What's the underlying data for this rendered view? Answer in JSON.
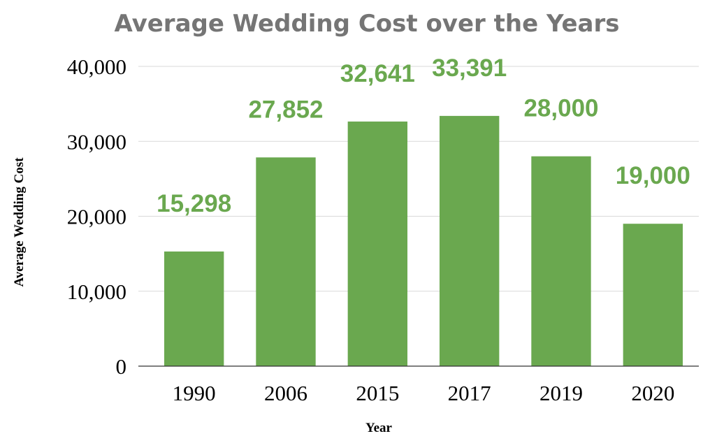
{
  "chart_data": {
    "type": "bar",
    "title": "Average Wedding Cost over the Years",
    "xlabel": "Year",
    "ylabel": "Average Wedding Cost",
    "categories": [
      "1990",
      "2006",
      "2015",
      "2017",
      "2019",
      "2020"
    ],
    "values": [
      15298,
      27852,
      32641,
      33391,
      28000,
      19000
    ],
    "data_labels": [
      "15,298",
      "27,852",
      "32,641",
      "33,391",
      "28,000",
      "19,000"
    ],
    "ylim": [
      0,
      40000
    ],
    "yticks": [
      0,
      10000,
      20000,
      30000,
      40000
    ],
    "ytick_labels": [
      "0",
      "10,000",
      "20,000",
      "30,000",
      "40,000"
    ],
    "grid": true,
    "legend": "none",
    "colors": {
      "bar": "#6aa84f",
      "data_label": "#6aa84f",
      "title": "#757575"
    }
  }
}
